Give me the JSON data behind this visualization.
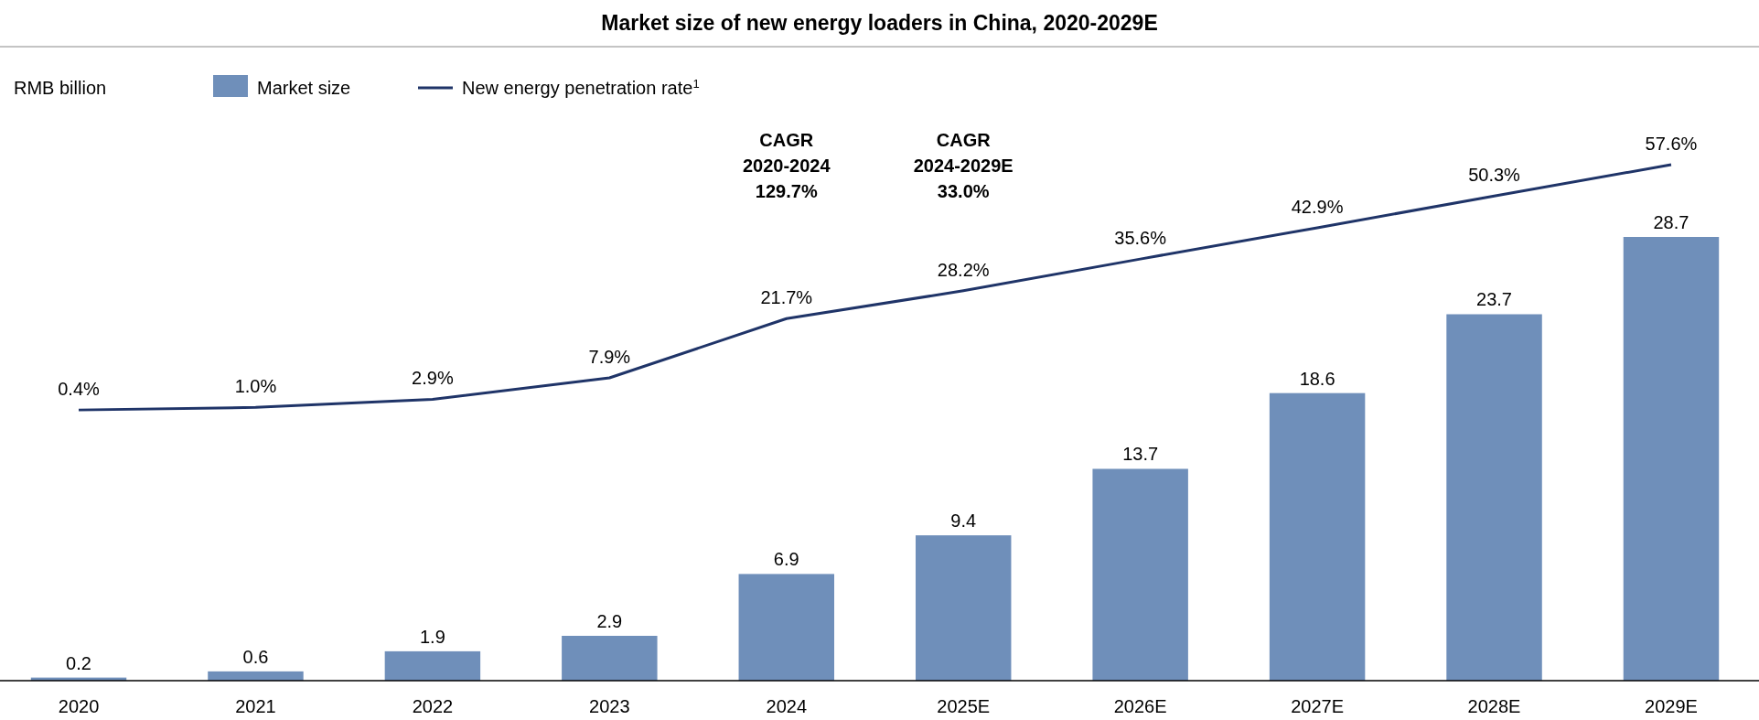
{
  "chart_data": {
    "type": "bar",
    "title": "Market size of new energy loaders in China, 2020-2029E",
    "categories": [
      "2020",
      "2021",
      "2022",
      "2023",
      "2024",
      "2025E",
      "2026E",
      "2027E",
      "2028E",
      "2029E"
    ],
    "series": [
      {
        "name": "Market size",
        "color": "#6f8fba",
        "values": [
          0.2,
          0.6,
          1.9,
          2.9,
          6.9,
          9.4,
          13.7,
          18.6,
          23.7,
          28.7
        ]
      },
      {
        "name": "New energy penetration rate$^{1}$",
        "type": "line",
        "axis": "y2",
        "color": "#1f3468",
        "values": [
          0.4,
          1.0,
          2.9,
          7.9,
          21.7,
          28.2,
          35.6,
          42.9,
          50.3,
          57.6
        ],
        "value_labels": [
          "0.4%",
          "1.0%",
          "2.9%",
          "7.9%",
          "21.7%",
          "28.2%",
          "35.6%",
          "42.9%",
          "50.3%",
          "57.6%"
        ]
      }
    ],
    "annotations": [
      "RMB billion",
      "CAGR\n2020-2024\n129.7%",
      "CAGR\n2024-2029E\n33.0%"
    ],
    "data_labels": true,
    "legend": "top left",
    "grid": false,
    "marker": "none"
  }
}
